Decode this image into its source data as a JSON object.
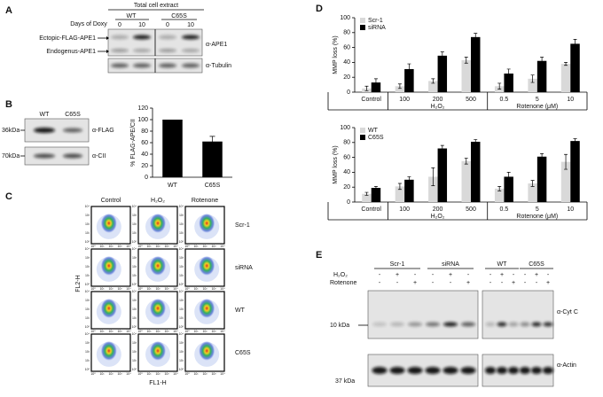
{
  "panel_labels": [
    "A",
    "B",
    "C",
    "D",
    "E"
  ],
  "panel_a": {
    "header": "Total cell extract",
    "row_label": "Days of Doxy",
    "groups": [
      "WT",
      "C65S"
    ],
    "days": [
      "0",
      "10",
      "0",
      "10"
    ],
    "bands": [
      "Ectopic-FLAG-APE1",
      "Endogenus-APE1"
    ],
    "antibodies": [
      "α-APE1",
      "α-Tubulin"
    ]
  },
  "panel_b_blot": {
    "lanes": [
      "WT",
      "C65S"
    ],
    "markers": [
      "36kDa",
      "70kDa"
    ],
    "antibodies": [
      "α-FLAG",
      "α-CII"
    ]
  },
  "panel_c": {
    "columns": [
      "Control",
      "H₂O₂",
      "Rotenone"
    ],
    "rows": [
      "Scr-1",
      "siRNA",
      "WT",
      "C65S"
    ],
    "y_axis": "FL2-H",
    "x_axis": "FL1-H",
    "ticks": [
      "10⁰",
      "10¹",
      "10²",
      "10³",
      "10⁴"
    ]
  },
  "chart_data": [
    {
      "type": "bar",
      "ylabel": "% FLAG-APE/CII",
      "categories": [
        "WT",
        "C65S"
      ],
      "values": [
        100,
        62
      ],
      "errors": [
        null,
        9
      ],
      "color": "#000000",
      "ylim": [
        0,
        120
      ],
      "yticks": [
        0,
        20,
        40,
        60,
        80,
        100,
        120
      ]
    },
    {
      "type": "grouped_bar",
      "ylabel": "MMP loss (%)",
      "categories": [
        "Control",
        "100",
        "200",
        "500",
        "0.5",
        "5",
        "10"
      ],
      "category_groups": [
        null,
        "H₂O₂",
        "H₂O₂",
        "H₂O₂",
        "Rotenone (μM)",
        "Rotenone (μM)",
        "Rotenone (μM)"
      ],
      "series": [
        {
          "name": "Scr-1",
          "color": "#d9d9d9",
          "values": [
            5,
            8,
            15,
            43,
            8,
            18,
            38
          ],
          "errors": [
            3,
            3,
            3,
            4,
            4,
            5,
            2
          ]
        },
        {
          "name": "siRNA",
          "color": "#000000",
          "values": [
            13,
            31,
            49,
            74,
            25,
            42,
            65
          ],
          "errors": [
            5,
            7,
            5,
            5,
            6,
            5,
            6
          ]
        }
      ],
      "ylim": [
        0,
        100
      ],
      "yticks": [
        0,
        20,
        40,
        60,
        80,
        100
      ],
      "legend": "top-left"
    },
    {
      "type": "grouped_bar",
      "ylabel": "MMP loss (%)",
      "categories": [
        "Control",
        "100",
        "200",
        "500",
        "0.5",
        "5",
        "10"
      ],
      "category_groups": [
        null,
        "H₂O₂",
        "H₂O₂",
        "H₂O₂",
        "Rotenone (μM)",
        "Rotenone (μM)",
        "Rotenone (μM)"
      ],
      "series": [
        {
          "name": "WT",
          "color": "#d9d9d9",
          "values": [
            11,
            21,
            34,
            55,
            18,
            25,
            54
          ],
          "errors": [
            2,
            4,
            12,
            4,
            3,
            4,
            10
          ]
        },
        {
          "name": "C65S",
          "color": "#000000",
          "values": [
            19,
            30,
            72,
            81,
            34,
            61,
            82
          ],
          "errors": [
            2,
            4,
            4,
            3,
            6,
            4,
            3
          ]
        }
      ],
      "ylim": [
        0,
        100
      ],
      "yticks": [
        0,
        20,
        40,
        60,
        80,
        100
      ],
      "legend": "top-left"
    }
  ],
  "panel_e": {
    "groups": [
      "Scr-1",
      "siRNA",
      "WT",
      "C65S"
    ],
    "treatments": [
      "H₂O₂",
      "Rotenone"
    ],
    "h2o2_signs": [
      "-",
      "+",
      "-",
      "-",
      "+",
      "-",
      "-",
      "+",
      "-",
      "-",
      "+",
      "-"
    ],
    "rotenone_signs": [
      "-",
      "-",
      "+",
      "-",
      "-",
      "+",
      "-",
      "-",
      "+",
      "-",
      "-",
      "+"
    ],
    "markers": [
      "10 kDa",
      "37 kDa"
    ],
    "antibodies": [
      "α-Cyt C",
      "α-Actin"
    ]
  }
}
